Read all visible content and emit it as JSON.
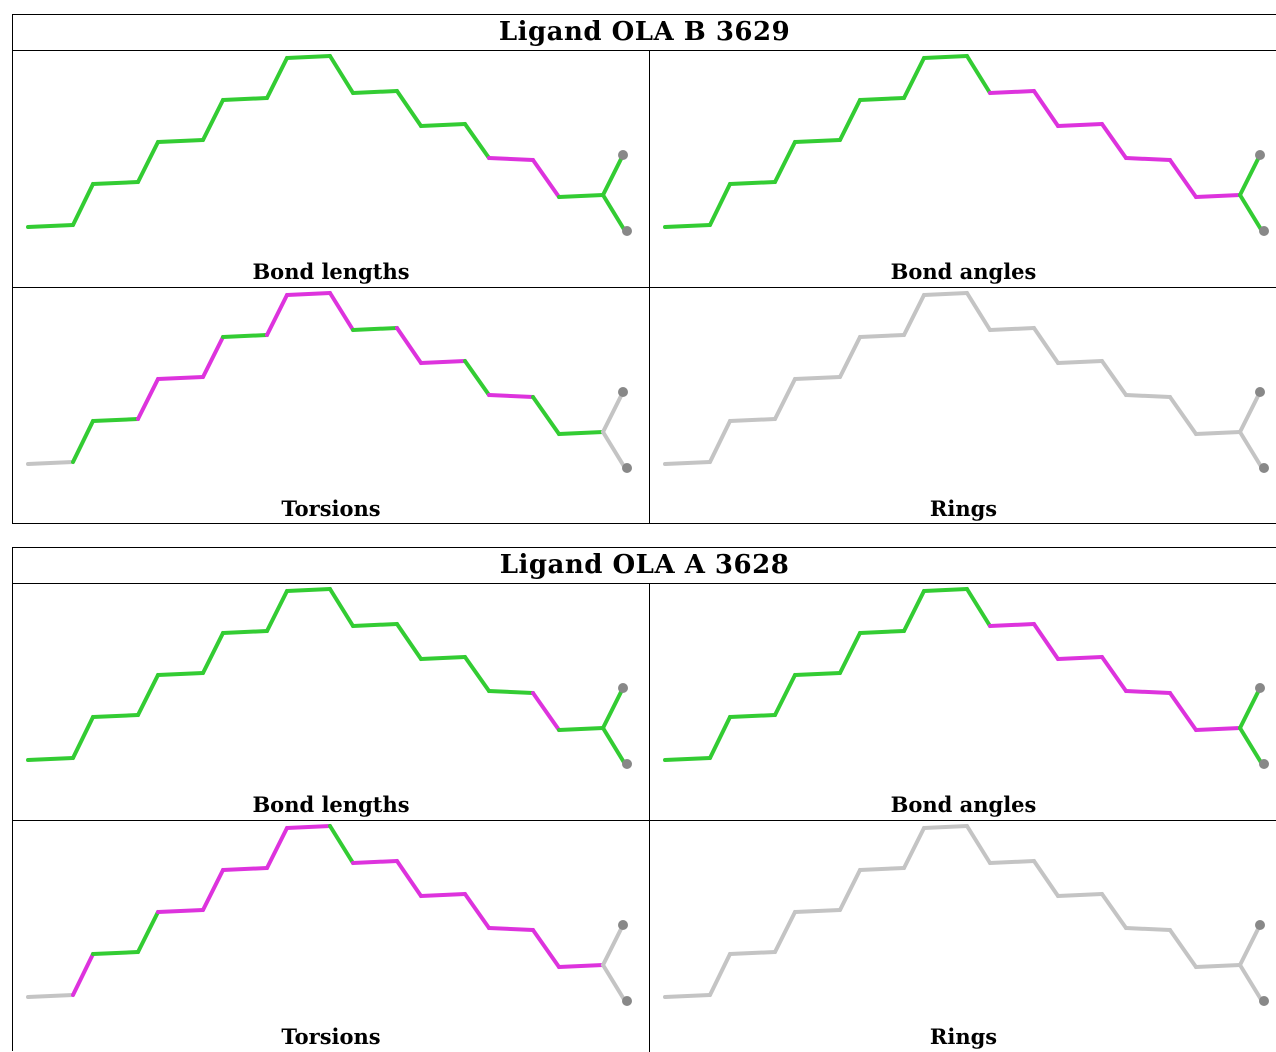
{
  "colors": {
    "green": "#33cc33",
    "magenta": "#dd33dd",
    "gray": "#c4c4c4",
    "atom": "#888888"
  },
  "ligands": [
    {
      "title": "Ligand OLA B 3629",
      "panels": [
        {
          "label": "Bond lengths",
          "default_color": "green",
          "colored_segments": {
            "magenta": [
              14,
              15
            ]
          }
        },
        {
          "label": "Bond angles",
          "default_color": "green",
          "colored_segments": {
            "magenta": [
              10,
              11,
              12,
              13,
              14,
              15,
              16
            ]
          }
        },
        {
          "label": "Torsions",
          "default_color": "green",
          "colored_segments": {
            "gray": [
              0
            ],
            "magenta": [
              3,
              4,
              5,
              7,
              8,
              9,
              11,
              12,
              14
            ],
            "gray_tail": true
          }
        },
        {
          "label": "Rings",
          "default_color": "gray",
          "colored_segments": {}
        }
      ]
    },
    {
      "title": "Ligand OLA A 3628",
      "panels": [
        {
          "label": "Bond lengths",
          "default_color": "green",
          "colored_segments": {
            "magenta": [
              15
            ]
          }
        },
        {
          "label": "Bond angles",
          "default_color": "green",
          "colored_segments": {
            "magenta": [
              10,
              11,
              12,
              13,
              14,
              15,
              16
            ]
          }
        },
        {
          "label": "Torsions",
          "default_color": "magenta",
          "colored_segments": {
            "gray": [
              0
            ],
            "green": [
              2,
              3,
              9
            ],
            "gray_tail": true
          }
        },
        {
          "label": "Rings",
          "default_color": "gray",
          "colored_segments": {}
        }
      ]
    }
  ]
}
